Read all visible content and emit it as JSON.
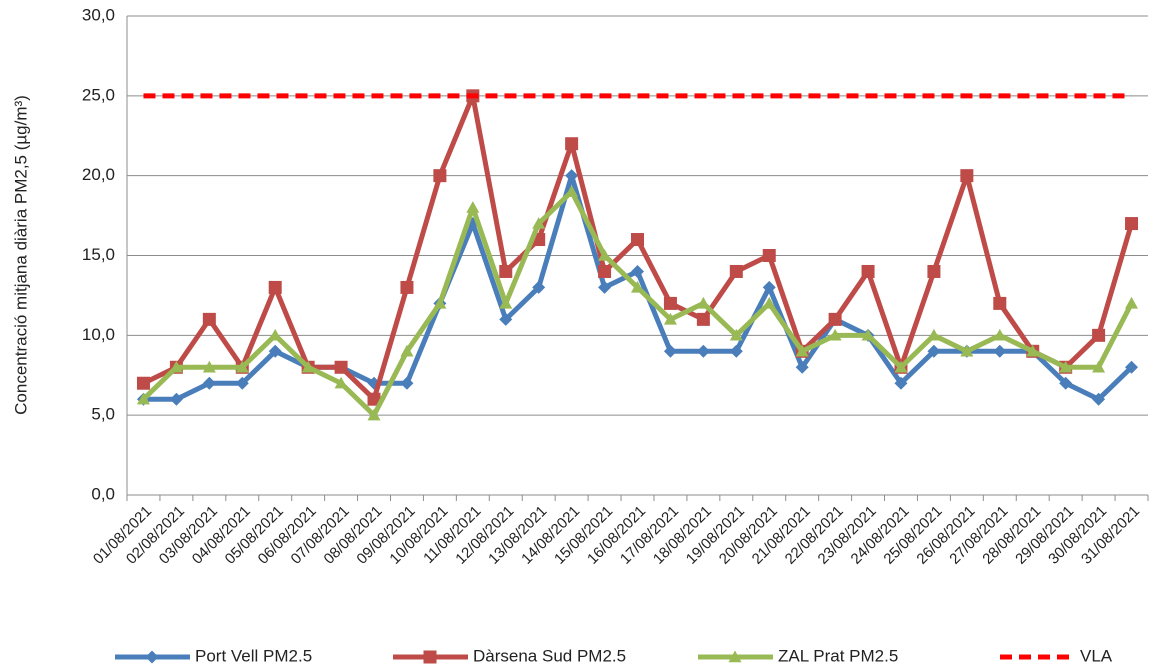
{
  "chart_data": {
    "type": "line",
    "y_label": "Concentració mitjana diària PM2,5 (µg/m³)",
    "categories": [
      "01/08/2021",
      "02/08/2021",
      "03/08/2021",
      "04/08/2021",
      "05/08/2021",
      "06/08/2021",
      "07/08/2021",
      "08/08/2021",
      "09/08/2021",
      "10/08/2021",
      "11/08/2021",
      "12/08/2021",
      "13/08/2021",
      "14/08/2021",
      "15/08/2021",
      "16/08/2021",
      "17/08/2021",
      "18/08/2021",
      "19/08/2021",
      "20/08/2021",
      "21/08/2021",
      "22/08/2021",
      "23/08/2021",
      "24/08/2021",
      "25/08/2021",
      "26/08/2021",
      "27/08/2021",
      "28/08/2021",
      "29/08/2021",
      "30/08/2021",
      "31/08/2021"
    ],
    "series": [
      {
        "name": "Port Vell PM2.5",
        "color": "#4a7ebb",
        "marker": "diamond",
        "values": [
          6,
          6,
          7,
          7,
          9,
          8,
          8,
          7,
          7,
          12,
          17,
          11,
          13,
          20,
          13,
          14,
          9,
          9,
          9,
          13,
          8,
          11,
          10,
          7,
          9,
          9,
          9,
          9,
          7,
          6,
          8
        ]
      },
      {
        "name": "Dàrsena Sud PM2.5",
        "color": "#be4b48",
        "marker": "square",
        "values": [
          7,
          8,
          11,
          8,
          13,
          8,
          8,
          6,
          13,
          20,
          25,
          14,
          16,
          22,
          14,
          16,
          12,
          11,
          14,
          15,
          9,
          11,
          14,
          8,
          14,
          20,
          12,
          9,
          8,
          10,
          17
        ]
      },
      {
        "name": "ZAL Prat PM2.5",
        "color": "#98b954",
        "marker": "triangle",
        "values": [
          6,
          8,
          8,
          8,
          10,
          8,
          7,
          5,
          9,
          12,
          18,
          12,
          17,
          19,
          15,
          13,
          11,
          12,
          10,
          12,
          9,
          10,
          10,
          8,
          10,
          9,
          10,
          9,
          8,
          8,
          12
        ]
      },
      {
        "name": "VLA",
        "color": "#ff0000",
        "marker": "none",
        "dash": true,
        "values": [
          25,
          25,
          25,
          25,
          25,
          25,
          25,
          25,
          25,
          25,
          25,
          25,
          25,
          25,
          25,
          25,
          25,
          25,
          25,
          25,
          25,
          25,
          25,
          25,
          25,
          25,
          25,
          25,
          25,
          25,
          25
        ]
      }
    ],
    "ylim": [
      0,
      30
    ],
    "yticks": [
      {
        "value": 0,
        "label": "0,0"
      },
      {
        "value": 5,
        "label": "5,0"
      },
      {
        "value": 10,
        "label": "10,0"
      },
      {
        "value": 15,
        "label": "15,0"
      },
      {
        "value": 20,
        "label": "20,0"
      },
      {
        "value": 25,
        "label": "25,0"
      },
      {
        "value": 30,
        "label": "30,0"
      }
    ],
    "grid": true,
    "legend": "bottom"
  }
}
